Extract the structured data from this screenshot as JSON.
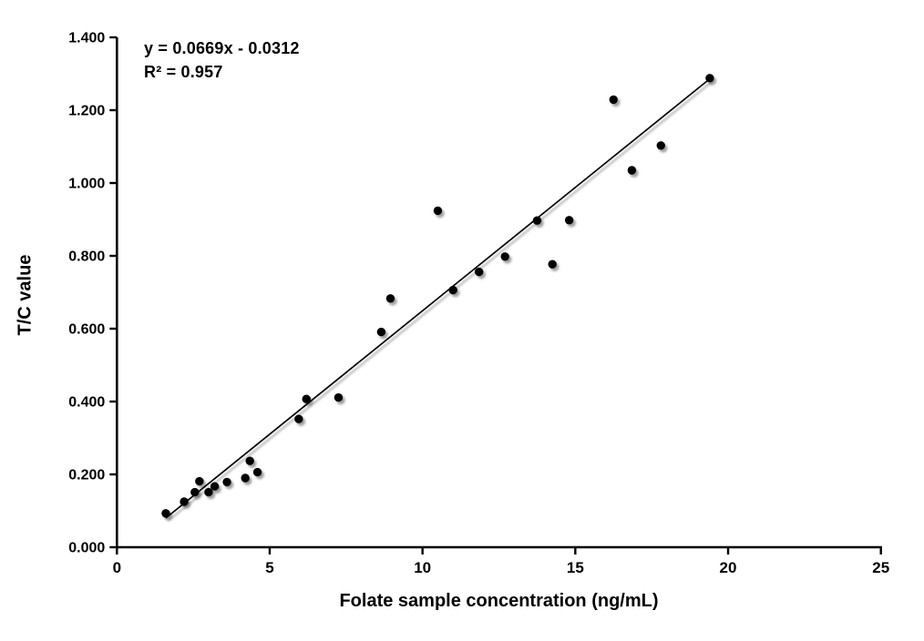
{
  "chart_data": {
    "type": "scatter",
    "title": "",
    "xlabel": "Folate sample concentration (ng/mL)",
    "ylabel": "T/C value",
    "xlim": [
      0,
      25
    ],
    "ylim": [
      0,
      1.4
    ],
    "x_ticks": [
      0,
      5,
      10,
      15,
      20,
      25
    ],
    "y_ticks": [
      "0.000",
      "0.200",
      "0.400",
      "0.600",
      "0.800",
      "1.000",
      "1.200",
      "1.400"
    ],
    "grid": false,
    "legend": false,
    "annotation": {
      "line1": "y = 0.0669x - 0.0312",
      "line2": "R² = 0.957"
    },
    "equation": {
      "slope": 0.0669,
      "intercept": -0.0312,
      "r_squared": 0.957
    },
    "trendline": {
      "x1": 1.6,
      "y1": 0.08,
      "x2": 19.4,
      "y2": 1.286
    },
    "points": [
      {
        "x": 1.6,
        "y": 0.093
      },
      {
        "x": 2.2,
        "y": 0.125
      },
      {
        "x": 2.55,
        "y": 0.151
      },
      {
        "x": 2.7,
        "y": 0.181
      },
      {
        "x": 3.0,
        "y": 0.151
      },
      {
        "x": 3.2,
        "y": 0.167
      },
      {
        "x": 3.6,
        "y": 0.179
      },
      {
        "x": 4.2,
        "y": 0.19
      },
      {
        "x": 4.35,
        "y": 0.237
      },
      {
        "x": 4.6,
        "y": 0.206
      },
      {
        "x": 5.95,
        "y": 0.352
      },
      {
        "x": 6.2,
        "y": 0.407
      },
      {
        "x": 7.25,
        "y": 0.411
      },
      {
        "x": 8.65,
        "y": 0.591
      },
      {
        "x": 8.95,
        "y": 0.683
      },
      {
        "x": 10.5,
        "y": 0.924
      },
      {
        "x": 11.0,
        "y": 0.706
      },
      {
        "x": 11.85,
        "y": 0.756
      },
      {
        "x": 12.7,
        "y": 0.798
      },
      {
        "x": 13.75,
        "y": 0.897
      },
      {
        "x": 14.25,
        "y": 0.777
      },
      {
        "x": 14.8,
        "y": 0.898
      },
      {
        "x": 16.25,
        "y": 1.229
      },
      {
        "x": 16.85,
        "y": 1.035
      },
      {
        "x": 17.8,
        "y": 1.103
      },
      {
        "x": 19.4,
        "y": 1.288
      }
    ],
    "colors": {
      "point": "#000000",
      "trendline": "#000000",
      "axis": "#000000",
      "text": "#000000",
      "background": "#ffffff"
    }
  }
}
